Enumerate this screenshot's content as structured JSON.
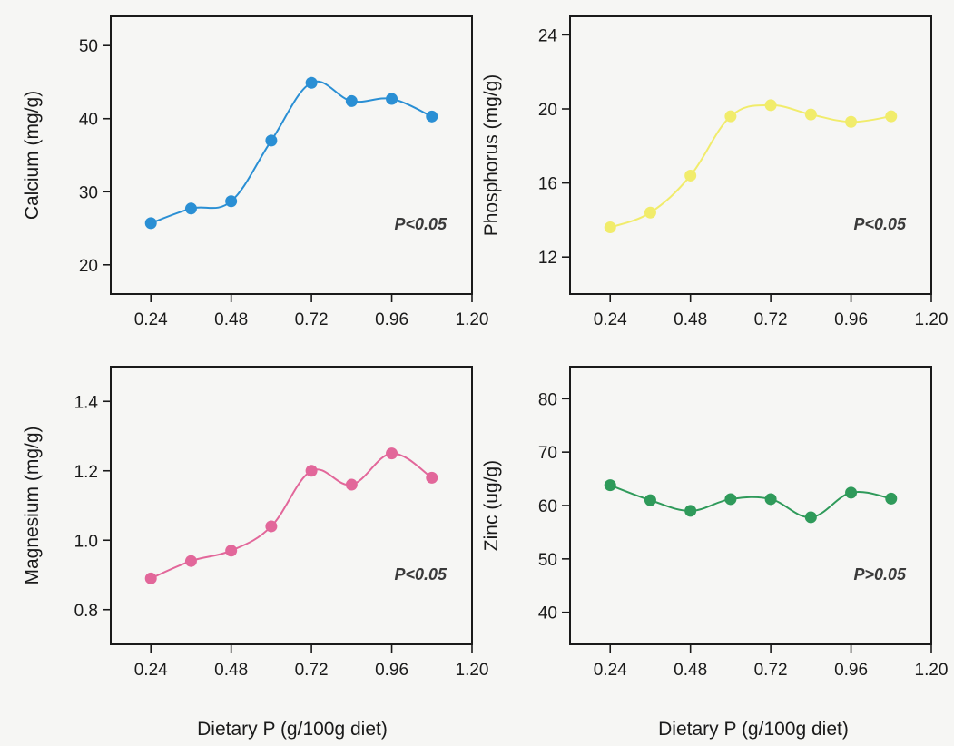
{
  "figure_xlabel": [
    "Dietary P (g/100g diet)",
    "Dietary P (g/100g diet)"
  ],
  "chart_data": [
    {
      "type": "line",
      "ylabel": "Calcium (mg/g)",
      "xlabel": "",
      "annotation": "P<0.05",
      "color": "#2a8fd4",
      "x": [
        0.24,
        0.36,
        0.48,
        0.6,
        0.72,
        0.84,
        0.96,
        1.08
      ],
      "values": [
        25.7,
        27.7,
        28.7,
        37.0,
        44.9,
        42.4,
        42.7,
        40.3
      ],
      "xlim": [
        0.12,
        1.2
      ],
      "ylim": [
        16,
        54
      ],
      "xticks": [
        0.24,
        0.48,
        0.72,
        0.96,
        1.2
      ],
      "xtick_labels": [
        "0.24",
        "0.48",
        "0.72",
        "0.96",
        "1.20"
      ],
      "yticks": [
        20,
        30,
        40,
        50
      ],
      "ytick_labels": [
        "20",
        "30",
        "40",
        "50"
      ]
    },
    {
      "type": "line",
      "ylabel": "Phosphorus (mg/g)",
      "xlabel": "",
      "annotation": "P<0.05",
      "color": "#f1ec6b",
      "x": [
        0.24,
        0.36,
        0.48,
        0.6,
        0.72,
        0.84,
        0.96,
        1.08
      ],
      "values": [
        13.6,
        14.4,
        16.4,
        19.6,
        20.2,
        19.7,
        19.3,
        19.6
      ],
      "xlim": [
        0.12,
        1.2
      ],
      "ylim": [
        10,
        25
      ],
      "xticks": [
        0.24,
        0.48,
        0.72,
        0.96,
        1.2
      ],
      "xtick_labels": [
        "0.24",
        "0.48",
        "0.72",
        "0.96",
        "1.20"
      ],
      "yticks": [
        12,
        16,
        20,
        24
      ],
      "ytick_labels": [
        "12",
        "16",
        "20",
        "24"
      ]
    },
    {
      "type": "line",
      "ylabel": "Magnesium (mg/g)",
      "xlabel": "",
      "annotation": "P<0.05",
      "color": "#e2679a",
      "x": [
        0.24,
        0.36,
        0.48,
        0.6,
        0.72,
        0.84,
        0.96,
        1.08
      ],
      "values": [
        0.89,
        0.94,
        0.97,
        1.04,
        1.2,
        1.16,
        1.25,
        1.18
      ],
      "xlim": [
        0.12,
        1.2
      ],
      "ylim": [
        0.7,
        1.5
      ],
      "xticks": [
        0.24,
        0.48,
        0.72,
        0.96,
        1.2
      ],
      "xtick_labels": [
        "0.24",
        "0.48",
        "0.72",
        "0.96",
        "1.20"
      ],
      "yticks": [
        0.8,
        1.0,
        1.2,
        1.4
      ],
      "ytick_labels": [
        "0.8",
        "1.0",
        "1.2",
        "1.4"
      ]
    },
    {
      "type": "line",
      "ylabel": "Zinc (ug/g)",
      "xlabel": "",
      "annotation": "P>0.05",
      "color": "#2f9a5a",
      "x": [
        0.24,
        0.36,
        0.48,
        0.6,
        0.72,
        0.84,
        0.96,
        1.08
      ],
      "values": [
        63.8,
        61.0,
        59.0,
        61.2,
        61.2,
        57.8,
        62.4,
        61.3
      ],
      "xlim": [
        0.12,
        1.2
      ],
      "ylim": [
        34,
        86
      ],
      "xticks": [
        0.24,
        0.48,
        0.72,
        0.96,
        1.2
      ],
      "xtick_labels": [
        "0.24",
        "0.48",
        "0.72",
        "0.96",
        "1.20"
      ],
      "yticks": [
        40,
        50,
        60,
        70,
        80
      ],
      "ytick_labels": [
        "40",
        "50",
        "60",
        "70",
        "80"
      ]
    }
  ]
}
